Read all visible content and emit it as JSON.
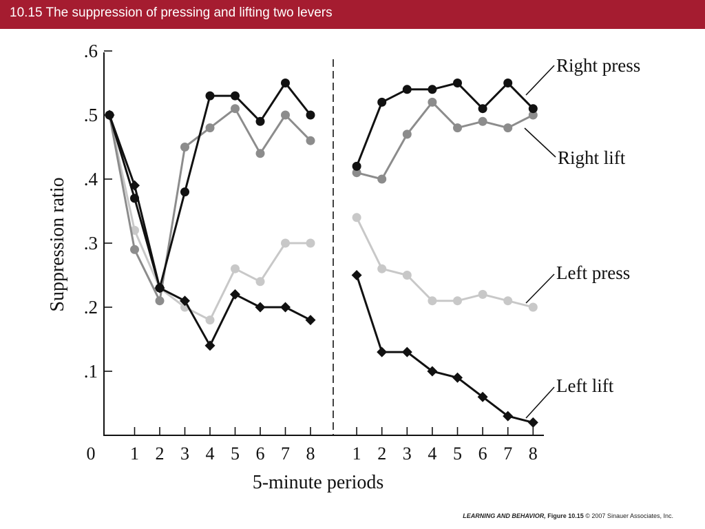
{
  "header": {
    "title": "10.15  The suppression of pressing and lifting two levers"
  },
  "footer": {
    "book": "LEARNING AND BEHAVIOR,",
    "figure": "Figure 10.15",
    "copyright": "© 2007 Sinauer Associates, Inc."
  },
  "chart_data": {
    "type": "line",
    "title": "",
    "xlabel": "5-minute periods",
    "ylabel": "Suppression ratio",
    "ylim": [
      0,
      0.6
    ],
    "yticks": [
      ".1",
      ".2",
      ".3",
      ".4",
      ".5",
      ".6"
    ],
    "xtick_origin": "0",
    "grid": false,
    "colors": {
      "right_press": "#111111",
      "right_lift": "#8c8c8c",
      "left_press": "#c8c8c8",
      "left_lift": "#111111"
    },
    "panels": [
      {
        "name": "phase-1",
        "x": [
          0,
          1,
          2,
          3,
          4,
          5,
          6,
          7,
          8
        ],
        "xtick_labels": [
          "1",
          "2",
          "3",
          "4",
          "5",
          "6",
          "7",
          "8"
        ],
        "series": [
          {
            "key": "right_press",
            "marker": "circle",
            "values": [
              0.5,
              0.37,
              0.23,
              0.38,
              0.53,
              0.53,
              0.49,
              0.55,
              0.5
            ]
          },
          {
            "key": "right_lift",
            "marker": "circle",
            "values": [
              0.5,
              0.29,
              0.21,
              0.45,
              0.48,
              0.51,
              0.44,
              0.5,
              0.46
            ]
          },
          {
            "key": "left_press",
            "marker": "circle",
            "values": [
              0.5,
              0.32,
              0.23,
              0.2,
              0.18,
              0.26,
              0.24,
              0.3,
              0.3
            ]
          },
          {
            "key": "left_lift",
            "marker": "diamond",
            "values": [
              0.5,
              0.39,
              0.23,
              0.21,
              0.14,
              0.22,
              0.2,
              0.2,
              0.18
            ]
          }
        ]
      },
      {
        "name": "phase-2",
        "x": [
          1,
          2,
          3,
          4,
          5,
          6,
          7,
          8
        ],
        "xtick_labels": [
          "1",
          "2",
          "3",
          "4",
          "5",
          "6",
          "7",
          "8"
        ],
        "series": [
          {
            "key": "right_press",
            "marker": "circle",
            "values": [
              0.42,
              0.52,
              0.54,
              0.54,
              0.55,
              0.51,
              0.55,
              0.51
            ]
          },
          {
            "key": "right_lift",
            "marker": "circle",
            "values": [
              0.41,
              0.4,
              0.47,
              0.52,
              0.48,
              0.49,
              0.48,
              0.5
            ]
          },
          {
            "key": "left_press",
            "marker": "circle",
            "values": [
              0.34,
              0.26,
              0.25,
              0.21,
              0.21,
              0.22,
              0.21,
              0.2
            ]
          },
          {
            "key": "left_lift",
            "marker": "diamond",
            "values": [
              0.25,
              0.13,
              0.13,
              0.1,
              0.09,
              0.06,
              0.03,
              0.02
            ]
          }
        ]
      }
    ],
    "labels": [
      {
        "key": "right_press",
        "text": "Right press"
      },
      {
        "key": "right_lift",
        "text": "Right lift"
      },
      {
        "key": "left_press",
        "text": "Left press"
      },
      {
        "key": "left_lift",
        "text": "Left lift"
      }
    ]
  }
}
